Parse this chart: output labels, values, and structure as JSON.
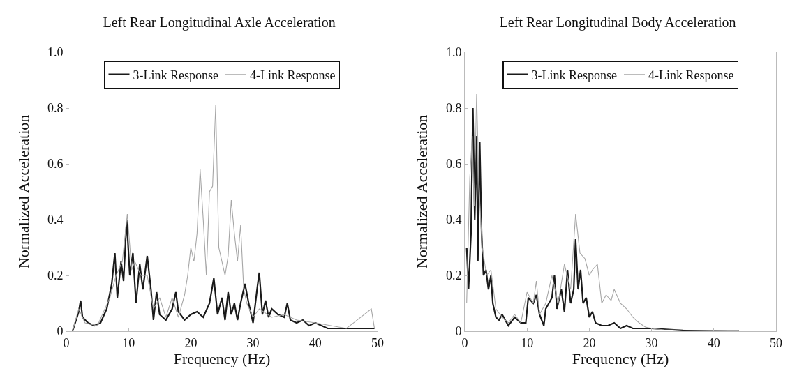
{
  "chart_data": [
    {
      "type": "line",
      "title": "Left Rear Longitudinal Axle Acceleration",
      "xlabel": "Frequency (Hz)",
      "ylabel": "Normalized Acceleration",
      "xlim": [
        0,
        50
      ],
      "ylim": [
        0,
        1
      ],
      "xticks": [
        0,
        10,
        20,
        30,
        40,
        50
      ],
      "yticks": [
        0,
        0.2,
        0.4,
        0.6,
        0.8,
        {
          "value": 1,
          "label": "1.0"
        }
      ],
      "grid": false,
      "legend": "top",
      "line_style": "solid",
      "marker": "none",
      "series": [
        {
          "name": "3-Link Response",
          "color": "#1a1a1a",
          "x": [
            1,
            2,
            2.3,
            2.6,
            3.5,
            4.5,
            5.5,
            6.5,
            7.3,
            7.8,
            8.2,
            8.8,
            9.2,
            9.7,
            10.2,
            10.7,
            11.2,
            11.8,
            12.3,
            13,
            13.6,
            14,
            14.5,
            15,
            16,
            17,
            17.6,
            18,
            19,
            20,
            21,
            22,
            23,
            23.7,
            24.3,
            25,
            25.5,
            26,
            26.5,
            27,
            27.5,
            28,
            28.7,
            29.3,
            30,
            30.7,
            31,
            31.5,
            32,
            32.5,
            33,
            34,
            35,
            35.5,
            36,
            37,
            38,
            39,
            40,
            41,
            42,
            44,
            46,
            48,
            49.5
          ],
          "values": [
            0,
            0.07,
            0.11,
            0.05,
            0.03,
            0.02,
            0.03,
            0.08,
            0.17,
            0.28,
            0.12,
            0.25,
            0.18,
            0.4,
            0.2,
            0.28,
            0.1,
            0.24,
            0.15,
            0.27,
            0.15,
            0.04,
            0.14,
            0.06,
            0.04,
            0.08,
            0.14,
            0.07,
            0.04,
            0.06,
            0.07,
            0.05,
            0.1,
            0.19,
            0.06,
            0.12,
            0.04,
            0.14,
            0.06,
            0.1,
            0.04,
            0.1,
            0.17,
            0.1,
            0.03,
            0.16,
            0.21,
            0.06,
            0.11,
            0.05,
            0.08,
            0.06,
            0.05,
            0.1,
            0.04,
            0.03,
            0.04,
            0.02,
            0.03,
            0.02,
            0.01,
            0.01,
            0.01,
            0.01,
            0.01
          ]
        },
        {
          "name": "4-Link Response",
          "color": "#a6a6a6",
          "x": [
            1,
            2,
            3,
            5,
            7,
            8,
            9,
            9.8,
            10.5,
            11,
            12,
            13,
            14,
            15,
            16,
            17,
            18,
            19,
            19.5,
            20,
            20.5,
            21,
            21.5,
            22,
            22.5,
            23,
            23.5,
            24,
            24.5,
            25,
            25.5,
            26,
            26.5,
            27,
            27.5,
            28,
            28.5,
            29,
            30,
            31,
            33,
            35,
            37,
            40,
            45,
            49,
            49.5
          ],
          "values": [
            0,
            0.08,
            0.03,
            0.02,
            0.12,
            0.2,
            0.25,
            0.42,
            0.22,
            0.25,
            0.2,
            0.2,
            0.08,
            0.12,
            0.05,
            0.12,
            0.05,
            0.13,
            0.2,
            0.3,
            0.25,
            0.35,
            0.58,
            0.4,
            0.2,
            0.5,
            0.52,
            0.81,
            0.3,
            0.25,
            0.2,
            0.27,
            0.47,
            0.35,
            0.25,
            0.38,
            0.15,
            0.1,
            0.05,
            0.08,
            0.05,
            0.06,
            0.04,
            0.03,
            0.01,
            0.08,
            0.01
          ]
        }
      ]
    },
    {
      "type": "line",
      "title": "Left Rear Longitudinal Body Acceleration",
      "xlabel": "Frequency (Hz)",
      "ylabel": "Normalized Acceleration",
      "xlim": [
        0,
        50
      ],
      "ylim": [
        0,
        1
      ],
      "xticks": [
        0,
        10,
        20,
        30,
        40,
        50
      ],
      "yticks": [
        0,
        0.2,
        0.4,
        0.6,
        0.8,
        {
          "value": 1,
          "label": "1.0"
        }
      ],
      "grid": false,
      "legend": "top",
      "line_style": "solid",
      "marker": "none",
      "series": [
        {
          "name": "3-Link Response",
          "color": "#1a1a1a",
          "x": [
            0.3,
            0.6,
            1,
            1.3,
            1.6,
            1.9,
            2.1,
            2.4,
            2.7,
            3,
            3.4,
            3.8,
            4.2,
            4.5,
            5,
            5.5,
            6,
            7,
            8,
            9,
            9.8,
            10.2,
            11,
            11.5,
            12,
            12.7,
            13,
            14,
            14.4,
            14.8,
            15.5,
            16,
            16.5,
            17,
            17.5,
            17.8,
            18.2,
            18.6,
            19,
            19.5,
            20,
            20.5,
            21,
            22,
            23,
            24,
            25,
            26,
            27,
            28,
            30,
            35,
            40,
            44
          ],
          "values": [
            0.3,
            0.15,
            0.35,
            0.8,
            0.4,
            0.7,
            0.25,
            0.68,
            0.35,
            0.2,
            0.22,
            0.15,
            0.2,
            0.1,
            0.05,
            0.04,
            0.06,
            0.02,
            0.05,
            0.03,
            0.03,
            0.12,
            0.1,
            0.13,
            0.06,
            0.02,
            0.08,
            0.12,
            0.2,
            0.08,
            0.15,
            0.07,
            0.22,
            0.1,
            0.15,
            0.33,
            0.15,
            0.22,
            0.1,
            0.12,
            0.05,
            0.07,
            0.03,
            0.02,
            0.02,
            0.03,
            0.01,
            0.02,
            0.01,
            0.01,
            0.01,
            0.003,
            0.002,
            0.001
          ]
        },
        {
          "name": "4-Link Response",
          "color": "#a6a6a6",
          "x": [
            0.3,
            0.8,
            1.2,
            1.5,
            1.9,
            2.3,
            2.8,
            3.5,
            4.2,
            5,
            6,
            7,
            8,
            9,
            10,
            11,
            11.5,
            12,
            13,
            14,
            15,
            16,
            17,
            17.8,
            18.5,
            19.3,
            20,
            20.5,
            21.3,
            22,
            22.7,
            23.5,
            24,
            25,
            26,
            27,
            28,
            29,
            30,
            32,
            40,
            44
          ],
          "values": [
            0.1,
            0.55,
            0.7,
            0.45,
            0.85,
            0.5,
            0.3,
            0.2,
            0.22,
            0.08,
            0.05,
            0.03,
            0.06,
            0.03,
            0.14,
            0.1,
            0.18,
            0.06,
            0.1,
            0.2,
            0.1,
            0.24,
            0.15,
            0.42,
            0.28,
            0.26,
            0.2,
            0.22,
            0.24,
            0.1,
            0.13,
            0.11,
            0.15,
            0.1,
            0.08,
            0.05,
            0.03,
            0.015,
            0.01,
            0.005,
            0.002,
            0.001
          ]
        }
      ]
    }
  ]
}
